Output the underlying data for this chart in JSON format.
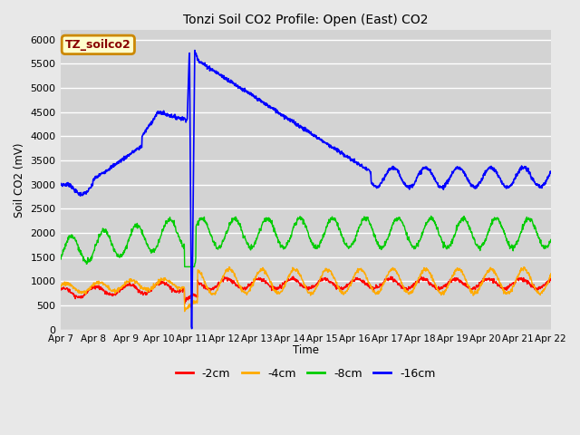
{
  "title": "Tonzi Soil CO2 Profile: Open (East) CO2",
  "ylabel": "Soil CO2 (mV)",
  "xlabel": "Time",
  "ylim": [
    0,
    6200
  ],
  "yticks": [
    0,
    500,
    1000,
    1500,
    2000,
    2500,
    3000,
    3500,
    4000,
    4500,
    5000,
    5500,
    6000
  ],
  "background_color": "#e8e8e8",
  "plot_bg_color": "#d3d3d3",
  "grid_color": "#ffffff",
  "label_box_text": "TZ_soilco2",
  "label_box_facecolor": "#ffffcc",
  "label_box_edgecolor": "#cc8800",
  "label_box_textcolor": "#880000",
  "series": {
    "2cm": {
      "color": "#ff0000",
      "label": "-2cm"
    },
    "4cm": {
      "color": "#ffaa00",
      "label": "-4cm"
    },
    "8cm": {
      "color": "#00cc00",
      "label": "-8cm"
    },
    "16cm": {
      "color": "#0000ff",
      "label": "-16cm"
    }
  },
  "xtick_labels": [
    "Apr 7",
    "Apr 8",
    "Apr 9",
    "Apr 10",
    "Apr 11",
    "Apr 12",
    "Apr 13",
    "Apr 14",
    "Apr 15",
    "Apr 16",
    "Apr 17",
    "Apr 18",
    "Apr 19",
    "Apr 20",
    "Apr 21",
    "Apr 22"
  ],
  "n_points": 1500,
  "spike_day": 4.0,
  "osc_period": 1.0
}
